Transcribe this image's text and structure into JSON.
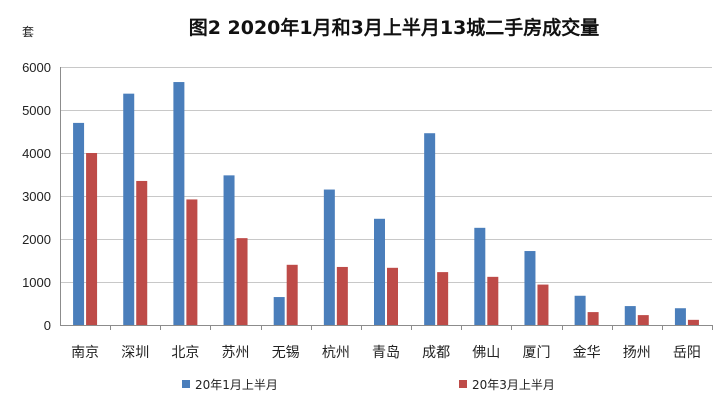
{
  "chart_data": {
    "type": "bar",
    "title": "图2  2020年1月和3月上半月13城二手房成交量",
    "ylabel": "套",
    "xlabel": "",
    "ylim": [
      0,
      6000
    ],
    "yticks": [
      0,
      1000,
      2000,
      3000,
      4000,
      5000,
      6000
    ],
    "grid": true,
    "legend_position": "bottom",
    "categories": [
      "南京",
      "深圳",
      "北京",
      "苏州",
      "无锡",
      "杭州",
      "青岛",
      "成都",
      "佛山",
      "厦门",
      "金华",
      "扬州",
      "岳阳"
    ],
    "series": [
      {
        "name": "20年1月上半月",
        "color": "#4a7ebb",
        "values": [
          4700,
          5380,
          5650,
          3480,
          650,
          3150,
          2470,
          4460,
          2260,
          1720,
          680,
          440,
          390
        ]
      },
      {
        "name": "20年3月上半月",
        "color": "#be4b48",
        "values": [
          4000,
          3350,
          2920,
          2020,
          1400,
          1350,
          1330,
          1230,
          1120,
          940,
          300,
          230,
          120
        ]
      }
    ]
  }
}
